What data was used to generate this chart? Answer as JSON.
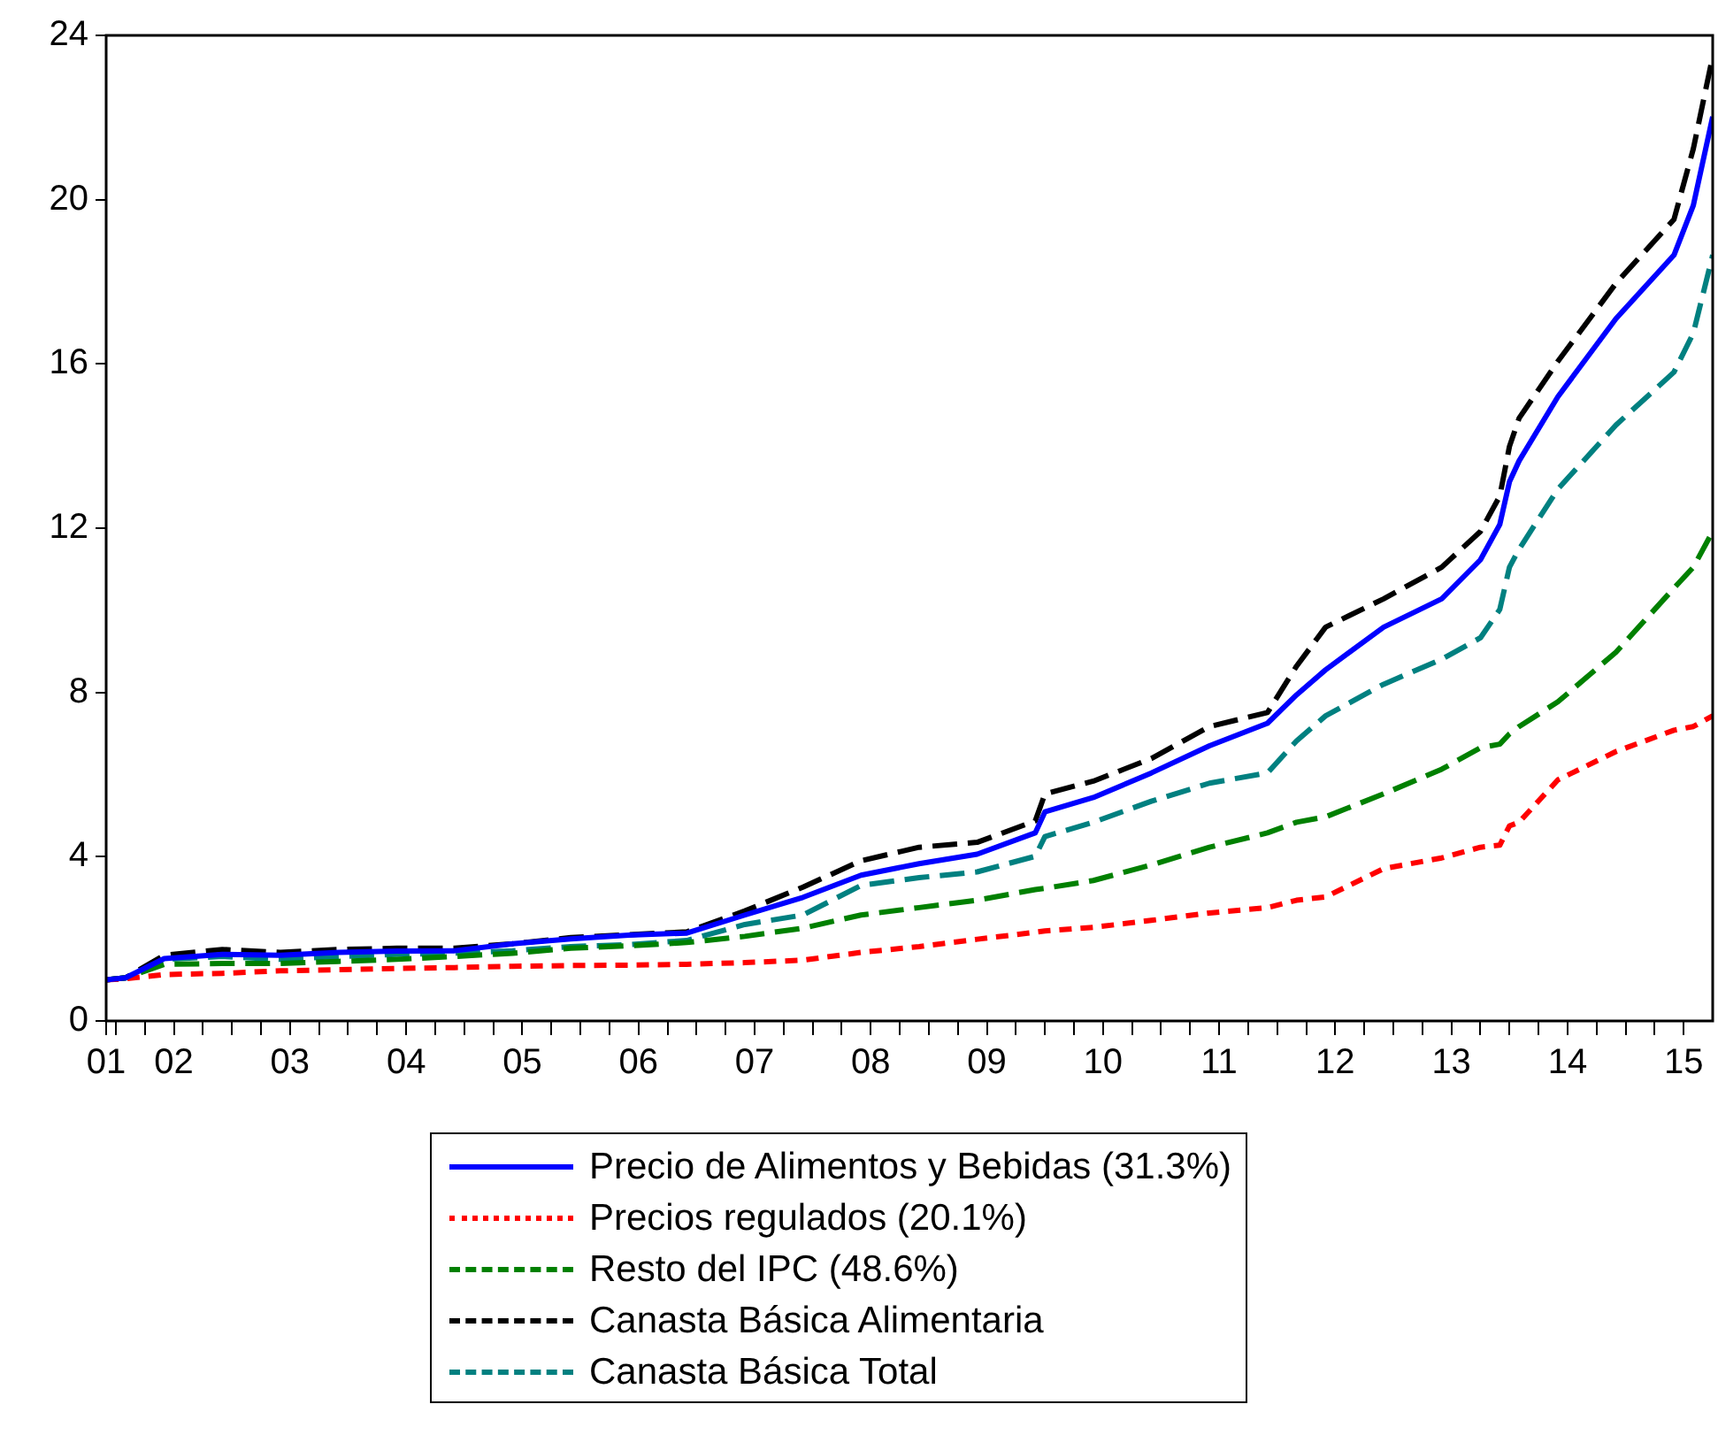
{
  "chart_data": {
    "type": "line",
    "x": [
      "2001-12",
      "2002-02",
      "2002-06",
      "2002-12",
      "2003-06",
      "2003-12",
      "2004-06",
      "2004-12",
      "2005-06",
      "2005-12",
      "2006-06",
      "2006-12",
      "2007-06",
      "2007-12",
      "2008-06",
      "2008-12",
      "2009-06",
      "2009-12",
      "2010-01",
      "2010-06",
      "2010-12",
      "2011-06",
      "2011-12",
      "2012-03",
      "2012-06",
      "2012-12",
      "2013-06",
      "2013-10",
      "2013-12",
      "2014-01",
      "2014-02",
      "2014-06",
      "2014-12",
      "2015-06",
      "2015-08",
      "2015-10"
    ],
    "series": [
      {
        "name": "Precio de Alimentos y Bebidas (31.3%)",
        "color": "#0000ff",
        "line_style": "solid",
        "values": [
          1.0,
          1.05,
          1.52,
          1.62,
          1.6,
          1.67,
          1.7,
          1.71,
          1.88,
          2.0,
          2.09,
          2.14,
          2.58,
          3.01,
          3.55,
          3.83,
          4.06,
          4.58,
          5.09,
          5.44,
          6.04,
          6.7,
          7.25,
          7.94,
          8.55,
          9.59,
          10.28,
          11.23,
          12.09,
          13.13,
          13.64,
          15.2,
          17.1,
          18.65,
          19.86,
          22.02
        ]
      },
      {
        "name": "Precios regulados (20.1%)",
        "color": "#ff0000",
        "line_style": "dotted",
        "values": [
          1.0,
          1.03,
          1.13,
          1.16,
          1.22,
          1.25,
          1.28,
          1.3,
          1.33,
          1.35,
          1.36,
          1.38,
          1.42,
          1.48,
          1.67,
          1.81,
          1.99,
          2.16,
          2.19,
          2.28,
          2.45,
          2.63,
          2.76,
          2.94,
          3.02,
          3.71,
          3.97,
          4.23,
          4.28,
          4.75,
          4.84,
          5.87,
          6.56,
          7.08,
          7.17,
          7.43
        ]
      },
      {
        "name": "Resto del IPC (48.6%)",
        "color": "#008000",
        "line_style": "dashed",
        "values": [
          1.0,
          1.05,
          1.38,
          1.4,
          1.4,
          1.45,
          1.5,
          1.57,
          1.65,
          1.77,
          1.83,
          1.91,
          2.06,
          2.26,
          2.58,
          2.76,
          2.94,
          3.2,
          3.23,
          3.42,
          3.8,
          4.23,
          4.58,
          4.84,
          4.97,
          5.53,
          6.13,
          6.65,
          6.74,
          6.99,
          7.17,
          7.77,
          8.98,
          10.54,
          11.05,
          11.92
        ]
      },
      {
        "name": "Canasta Básica Alimentaria",
        "color": "#000000",
        "line_style": "dashed",
        "values": [
          1.0,
          1.05,
          1.6,
          1.74,
          1.67,
          1.74,
          1.77,
          1.77,
          1.88,
          2.03,
          2.1,
          2.17,
          2.68,
          3.26,
          3.9,
          4.23,
          4.35,
          4.87,
          5.53,
          5.84,
          6.39,
          7.17,
          7.51,
          8.64,
          9.59,
          10.28,
          11.05,
          11.92,
          12.78,
          13.99,
          14.68,
          16.06,
          17.96,
          19.52,
          21.24,
          23.49
        ]
      },
      {
        "name": "Canasta Básica Total",
        "color": "#008080",
        "line_style": "dashed",
        "values": [
          1.0,
          1.05,
          1.5,
          1.57,
          1.5,
          1.57,
          1.62,
          1.65,
          1.71,
          1.81,
          1.86,
          1.96,
          2.35,
          2.58,
          3.3,
          3.49,
          3.63,
          4.01,
          4.49,
          4.84,
          5.35,
          5.79,
          6.04,
          6.82,
          7.43,
          8.2,
          8.81,
          9.33,
          10.02,
          11.05,
          11.49,
          12.95,
          14.51,
          15.8,
          16.75,
          18.65
        ]
      }
    ],
    "xlim": [
      "2001-12",
      "2015-10"
    ],
    "xticks": [
      {
        "value": "2001-12",
        "label": "01"
      },
      {
        "value": "2002-01",
        "label": null
      },
      {
        "value": "2002-04",
        "label": null
      },
      {
        "value": "2002-07",
        "label": "02"
      },
      {
        "value": "2002-10",
        "label": null
      },
      {
        "value": "2003-01",
        "label": null
      },
      {
        "value": "2003-04",
        "label": null
      },
      {
        "value": "2003-07",
        "label": "03"
      },
      {
        "value": "2003-10",
        "label": null
      },
      {
        "value": "2004-01",
        "label": null
      },
      {
        "value": "2004-04",
        "label": null
      },
      {
        "value": "2004-07",
        "label": "04"
      },
      {
        "value": "2004-10",
        "label": null
      },
      {
        "value": "2005-01",
        "label": null
      },
      {
        "value": "2005-04",
        "label": null
      },
      {
        "value": "2005-07",
        "label": "05"
      },
      {
        "value": "2005-10",
        "label": null
      },
      {
        "value": "2006-01",
        "label": null
      },
      {
        "value": "2006-04",
        "label": null
      },
      {
        "value": "2006-07",
        "label": "06"
      },
      {
        "value": "2006-10",
        "label": null
      },
      {
        "value": "2007-01",
        "label": null
      },
      {
        "value": "2007-04",
        "label": null
      },
      {
        "value": "2007-07",
        "label": "07"
      },
      {
        "value": "2007-10",
        "label": null
      },
      {
        "value": "2008-01",
        "label": null
      },
      {
        "value": "2008-04",
        "label": null
      },
      {
        "value": "2008-07",
        "label": "08"
      },
      {
        "value": "2008-10",
        "label": null
      },
      {
        "value": "2009-01",
        "label": null
      },
      {
        "value": "2009-04",
        "label": null
      },
      {
        "value": "2009-07",
        "label": "09"
      },
      {
        "value": "2009-10",
        "label": null
      },
      {
        "value": "2010-01",
        "label": null
      },
      {
        "value": "2010-04",
        "label": null
      },
      {
        "value": "2010-07",
        "label": "10"
      },
      {
        "value": "2010-10",
        "label": null
      },
      {
        "value": "2011-01",
        "label": null
      },
      {
        "value": "2011-04",
        "label": null
      },
      {
        "value": "2011-07",
        "label": "11"
      },
      {
        "value": "2011-10",
        "label": null
      },
      {
        "value": "2012-01",
        "label": null
      },
      {
        "value": "2012-04",
        "label": null
      },
      {
        "value": "2012-07",
        "label": "12"
      },
      {
        "value": "2012-10",
        "label": null
      },
      {
        "value": "2013-01",
        "label": null
      },
      {
        "value": "2013-04",
        "label": null
      },
      {
        "value": "2013-07",
        "label": "13"
      },
      {
        "value": "2013-10",
        "label": null
      },
      {
        "value": "2014-01",
        "label": null
      },
      {
        "value": "2014-04",
        "label": null
      },
      {
        "value": "2014-07",
        "label": "14"
      },
      {
        "value": "2014-10",
        "label": null
      },
      {
        "value": "2015-01",
        "label": null
      },
      {
        "value": "2015-04",
        "label": null
      },
      {
        "value": "2015-07",
        "label": "15"
      }
    ],
    "ylim": [
      0,
      24
    ],
    "yticks": [
      0,
      4,
      8,
      12,
      16,
      20,
      24
    ],
    "grid": false,
    "legend": "bottom",
    "marker": "none"
  }
}
